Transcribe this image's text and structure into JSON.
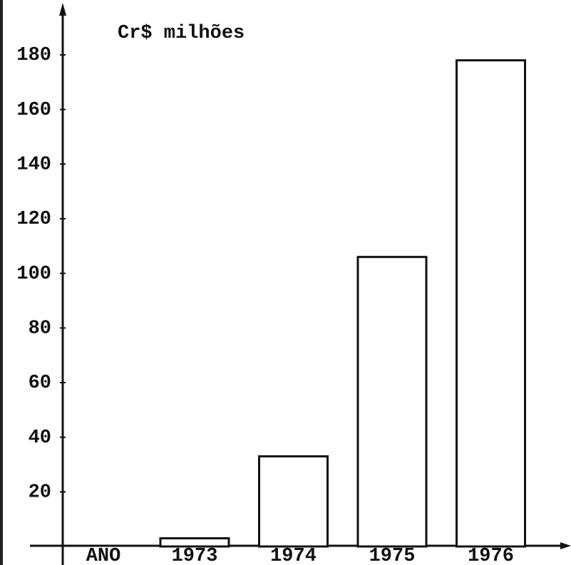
{
  "chart_data": {
    "type": "bar",
    "ylabel": "Cr$ milhões",
    "xlabel": "ANO",
    "categories": [
      "1973",
      "1974",
      "1975",
      "1976"
    ],
    "values": [
      3,
      33,
      106,
      178
    ],
    "color": "#ffffff",
    "ylim": [
      0,
      195
    ],
    "yticks": [
      20,
      40,
      60,
      80,
      100,
      120,
      140,
      160,
      180
    ],
    "grid": false
  }
}
